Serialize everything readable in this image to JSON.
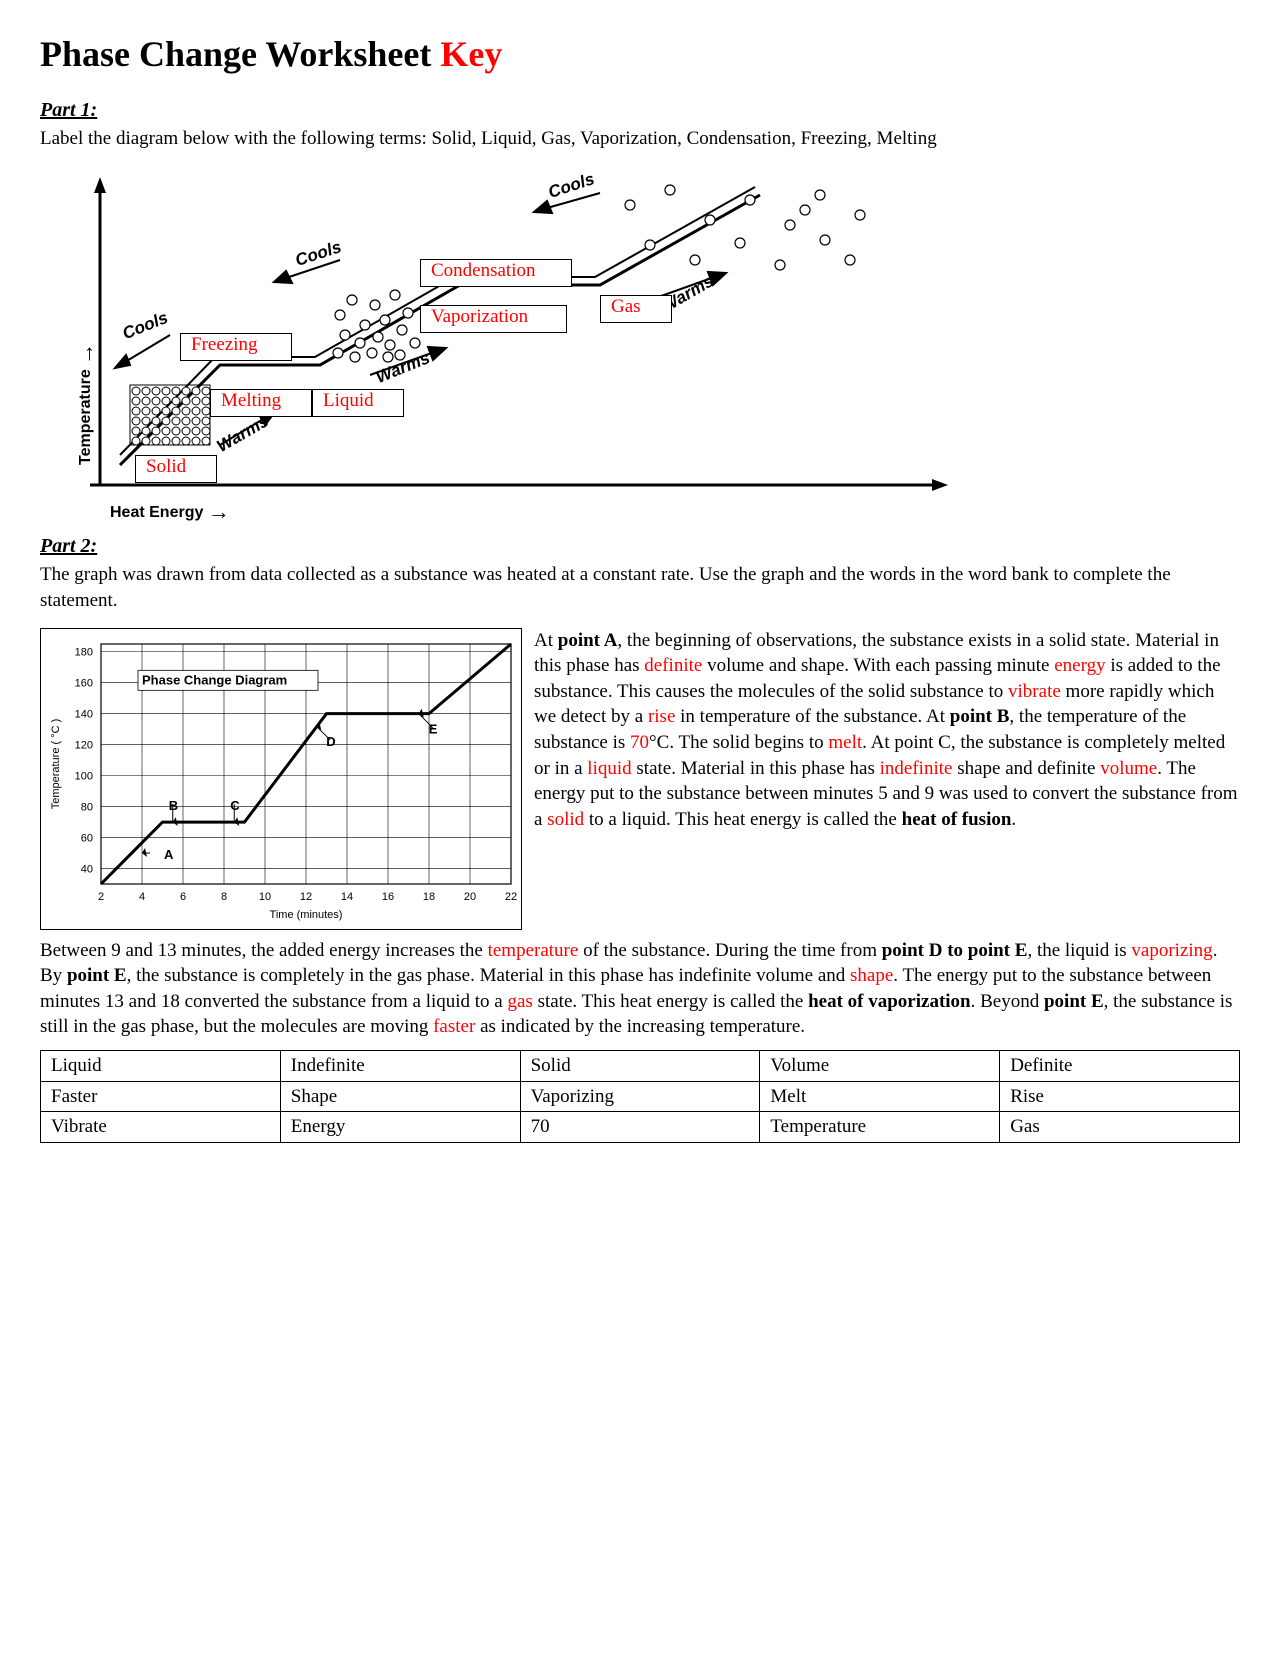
{
  "title_main": "Phase Change Worksheet ",
  "title_key": "Key",
  "part1": {
    "heading": "Part 1:",
    "instruction": "Label the diagram below with the following terms:  Solid, Liquid, Gas, Vaporization, Condensation, Freezing, Melting",
    "axis_y": "Temperature",
    "axis_x": "Heat Energy",
    "labels": {
      "freezing": "Freezing",
      "melting": "Melting",
      "solid": "Solid",
      "liquid": "Liquid",
      "condensation": "Condensation",
      "vaporization": "Vaporization",
      "gas": "Gas"
    },
    "angled": {
      "cools": "Cools",
      "warms": "Warms"
    },
    "style": {
      "line_color": "#000000",
      "line_width": 3,
      "label_border": "#000000",
      "label_text_color": "#ff0000",
      "bg": "#ffffff"
    }
  },
  "part2": {
    "heading": "Part 2:",
    "intro": "The graph was drawn from data collected as a substance was heated at a constant rate. Use the graph and the words in the word bank to complete the statement.",
    "chart": {
      "type": "line",
      "title": "Phase Change Diagram",
      "title_fontsize": 13,
      "xlabel": "Time (minutes)",
      "ylabel": "Temperature ( °C )",
      "label_fontsize": 11,
      "xlim": [
        2,
        22
      ],
      "xtick_step": 2,
      "ylim": [
        30,
        185
      ],
      "yticks": [
        40,
        60,
        80,
        100,
        120,
        140,
        160,
        180
      ],
      "grid_color": "#000000",
      "line_color": "#000000",
      "line_width": 3,
      "background_color": "#ffffff",
      "points_x": [
        2,
        5,
        9,
        13,
        18,
        22
      ],
      "points_y": [
        30,
        70,
        70,
        140,
        140,
        185
      ],
      "markers": [
        {
          "name": "A",
          "x": 4,
          "y": 50
        },
        {
          "name": "B",
          "x": 5.5,
          "y": 70
        },
        {
          "name": "C",
          "x": 8.5,
          "y": 70
        },
        {
          "name": "D",
          "x": 12.5,
          "y": 132
        },
        {
          "name": "E",
          "x": 17.5,
          "y": 140
        }
      ]
    },
    "text": {
      "t1": "At ",
      "b1": "point A",
      "t2": ", the beginning of observations, the substance exists in a solid state. Material in this phase has ",
      "r1": "definite",
      "t3": " volume and shape. With each passing minute ",
      "r2": "energy",
      "t4": " is added to the substance. This causes the molecules of the solid substance to ",
      "r3": "vibrate",
      "t5": " more rapidly which we detect by a ",
      "r4": "rise",
      "t6": " in temperature of the substance. At ",
      "b2": "point B",
      "t7": ", the temperature of the substance is ",
      "r5": "70",
      "t8": "°C. The solid begins to ",
      "r6": "melt",
      "t9": ". At point C, the substance is completely melted or in a ",
      "r7": "liquid",
      "t10": " state. Material in this phase has ",
      "r8": "indefinite",
      "t11": " shape and definite ",
      "r9": "volume",
      "t12": ". The energy put to the substance between minutes 5 and 9 was used to convert the substance from a ",
      "r10": "solid",
      "t13": " to a liquid. This heat energy is called the ",
      "b3": "heat of fusion",
      "t14": ".",
      "t15": "Between 9 and 13 minutes, the added energy increases the ",
      "r11": "temperature",
      "t16": " of the substance. During the time from ",
      "b4": "point D to point E",
      "t17": ", the liquid is ",
      "r12": "vaporizing",
      "t18": ". By ",
      "b5": "point E",
      "t19": ", the substance is completely in the gas phase. Material in this phase has indefinite volume and ",
      "r13": "shape",
      "t20": ". The energy put to the substance between minutes 13 and 18 converted the substance from a liquid to a ",
      "r14": "gas",
      "t21": " state. This heat energy is called the ",
      "b6": "heat of vaporization",
      "t22": ". Beyond ",
      "b7": "point E",
      "t23": ", the substance is still in the gas phase, but the molecules are moving ",
      "r15": "faster",
      "t24": " as indicated by the increasing temperature."
    },
    "word_bank": {
      "rows": [
        [
          "Liquid",
          "Indefinite",
          "Solid",
          "Volume",
          "Definite"
        ],
        [
          "Faster",
          "Shape",
          "Vaporizing",
          "Melt",
          "Rise"
        ],
        [
          "Vibrate",
          "Energy",
          "70",
          "Temperature",
          "Gas"
        ]
      ]
    }
  }
}
